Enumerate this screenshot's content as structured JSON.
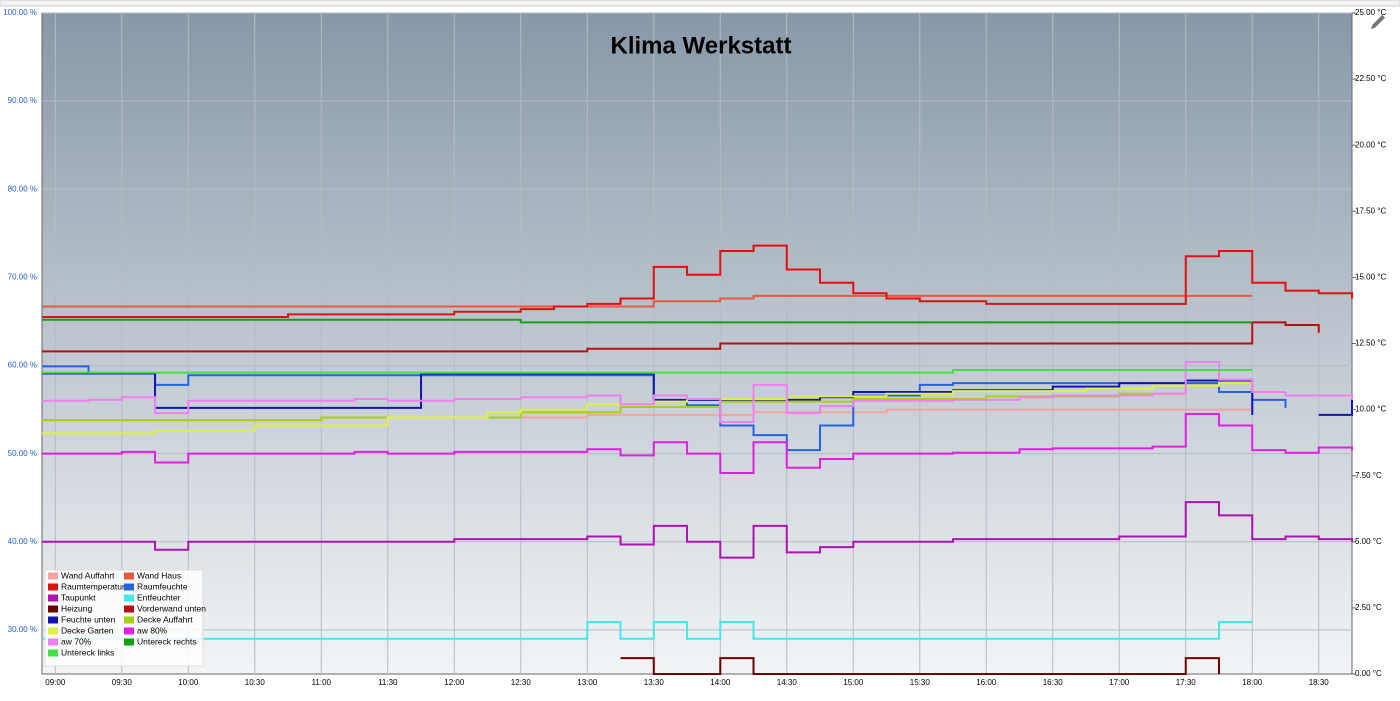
{
  "chart_data": {
    "type": "line",
    "title": "Klima Werkstatt",
    "step": true,
    "grid": true,
    "legend": "lower left",
    "xlim": [
      8.9,
      18.75
    ],
    "xticks": [
      {
        "value": 9,
        "label": "09:00"
      },
      {
        "value": 9.5,
        "label": "09:30"
      },
      {
        "value": 10,
        "label": "10:00"
      },
      {
        "value": 10.5,
        "label": "10:30"
      },
      {
        "value": 11,
        "label": "11:00"
      },
      {
        "value": 11.5,
        "label": "11:30"
      },
      {
        "value": 12,
        "label": "12:00"
      },
      {
        "value": 12.5,
        "label": "12:30"
      },
      {
        "value": 13,
        "label": "13:00"
      },
      {
        "value": 13.5,
        "label": "13:30"
      },
      {
        "value": 14,
        "label": "14:00"
      },
      {
        "value": 14.5,
        "label": "14:30"
      },
      {
        "value": 15,
        "label": "15:00"
      },
      {
        "value": 15.5,
        "label": "15:30"
      },
      {
        "value": 16,
        "label": "16:00"
      },
      {
        "value": 16.5,
        "label": "16:30"
      },
      {
        "value": 17,
        "label": "17:00"
      },
      {
        "value": 17.5,
        "label": "17:30"
      },
      {
        "value": 18,
        "label": "18:00"
      },
      {
        "value": 18.5,
        "label": "18:30"
      }
    ],
    "ylim": [
      25,
      100
    ],
    "yticks": [
      {
        "value": 30,
        "label": "30.00 %"
      },
      {
        "value": 40,
        "label": "40.00 %"
      },
      {
        "value": 50,
        "label": "50.00 %"
      },
      {
        "value": 60,
        "label": "60.00 %"
      },
      {
        "value": 70,
        "label": "70.00 %"
      },
      {
        "value": 80,
        "label": "80.00 %"
      },
      {
        "value": 90,
        "label": "90.00 %"
      },
      {
        "value": 100,
        "label": "100.00 %"
      }
    ],
    "y2lim": [
      0,
      25
    ],
    "y2ticks": [
      {
        "value": 0,
        "label": "0.00 °C"
      },
      {
        "value": 2.5,
        "label": "2.50 °C"
      },
      {
        "value": 5,
        "label": "5.00 °C"
      },
      {
        "value": 7.5,
        "label": "7.50 °C"
      },
      {
        "value": 10,
        "label": "10.00 °C"
      },
      {
        "value": 12.5,
        "label": "12.50 °C"
      },
      {
        "value": 15,
        "label": "15.00 °C"
      },
      {
        "value": 17.5,
        "label": "17.50 °C"
      },
      {
        "value": 20,
        "label": "20.00 °C"
      },
      {
        "value": 22.5,
        "label": "22.50 °C"
      },
      {
        "value": 25,
        "label": "25.00 °C"
      }
    ],
    "x": [
      8.9,
      9.25,
      9.5,
      9.75,
      10,
      10.25,
      10.5,
      10.75,
      11,
      11.25,
      11.5,
      11.75,
      12,
      12.25,
      12.5,
      12.75,
      13,
      13.25,
      13.5,
      13.75,
      14,
      14.25,
      14.5,
      14.75,
      15,
      15.25,
      15.5,
      15.75,
      16,
      16.25,
      16.5,
      16.75,
      17,
      17.25,
      17.5,
      17.75,
      18,
      18.25,
      18.5,
      18.75
    ],
    "series": [
      {
        "name": "Wand Auffahrt",
        "color": "#f4a4a0",
        "axis": "y2",
        "values": [
          9.6,
          9.6,
          9.6,
          9.6,
          9.6,
          9.6,
          9.6,
          9.6,
          9.7,
          9.7,
          9.7,
          9.7,
          9.7,
          9.7,
          9.7,
          9.7,
          9.8,
          9.8,
          9.8,
          9.8,
          9.8,
          9.9,
          9.9,
          9.9,
          9.9,
          10.0,
          10.0,
          10.0,
          10.0,
          10.0,
          10.0,
          10.0,
          10.0,
          10.0,
          10.0,
          10.0,
          10.0,
          null,
          null,
          null
        ]
      },
      {
        "name": "Wand Haus",
        "color": "#e8583c",
        "axis": "y2",
        "values": [
          13.9,
          13.9,
          13.9,
          13.9,
          13.9,
          13.9,
          13.9,
          13.9,
          13.9,
          13.9,
          13.9,
          13.9,
          13.9,
          13.9,
          13.9,
          13.9,
          13.9,
          13.9,
          14.1,
          14.1,
          14.2,
          14.3,
          14.3,
          14.3,
          14.3,
          14.3,
          14.3,
          14.3,
          14.3,
          14.3,
          14.3,
          14.3,
          14.3,
          14.3,
          14.3,
          14.3,
          14.3,
          null,
          null,
          null
        ]
      },
      {
        "name": "Raumtemperatur",
        "color": "#e01010",
        "axis": "y2",
        "values": [
          13.5,
          13.5,
          13.5,
          13.5,
          13.5,
          13.5,
          13.5,
          13.6,
          13.6,
          13.6,
          13.6,
          13.6,
          13.7,
          13.7,
          13.8,
          13.9,
          14.0,
          14.2,
          15.4,
          15.1,
          16.0,
          16.2,
          15.3,
          14.8,
          14.4,
          14.2,
          14.1,
          14.1,
          14.0,
          14.0,
          14.0,
          14.0,
          14.0,
          14.0,
          15.8,
          16.0,
          14.8,
          14.5,
          14.4,
          14.2
        ]
      },
      {
        "name": "Raumfeuchte",
        "color": "#2464e0",
        "axis": "y",
        "values": [
          59.9,
          59.1,
          59.1,
          57.8,
          58.9,
          58.9,
          58.9,
          58.9,
          58.9,
          58.9,
          58.9,
          58.9,
          58.9,
          58.9,
          58.9,
          58.9,
          58.9,
          58.9,
          56.6,
          55.5,
          53.2,
          52.1,
          50.4,
          53.2,
          56.6,
          56.6,
          57.8,
          58.0,
          58.0,
          58.0,
          58.0,
          58.0,
          58.0,
          58.0,
          58.0,
          57.0,
          56.1,
          55.2,
          null,
          null
        ]
      },
      {
        "name": "Taupunkt",
        "color": "#b012b0",
        "axis": "y2",
        "values": [
          5.0,
          5.0,
          5.0,
          4.7,
          5.0,
          5.0,
          5.0,
          5.0,
          5.0,
          5.0,
          5.0,
          5.0,
          5.1,
          5.1,
          5.1,
          5.1,
          5.2,
          4.9,
          5.6,
          5.0,
          4.4,
          5.6,
          4.6,
          4.8,
          5.0,
          5.0,
          5.0,
          5.1,
          5.1,
          5.1,
          5.1,
          5.1,
          5.2,
          5.2,
          6.5,
          6.0,
          5.1,
          5.2,
          5.1,
          5.0
        ]
      },
      {
        "name": "Entfeuchter",
        "color": "#44e8e8",
        "axis": "y",
        "values": [
          29.0,
          29.0,
          29.0,
          29.0,
          29.0,
          29.0,
          29.0,
          29.0,
          29.0,
          29.0,
          29.0,
          29.0,
          29.0,
          29.0,
          29.0,
          29.0,
          30.9,
          29.0,
          30.9,
          29.0,
          30.9,
          29.0,
          29.0,
          29.0,
          29.0,
          29.0,
          29.0,
          29.0,
          29.0,
          29.0,
          29.0,
          29.0,
          29.0,
          29.0,
          29.0,
          30.9,
          30.9,
          null,
          null,
          null
        ]
      },
      {
        "name": "Heizung",
        "color": "#700000",
        "axis": "y2",
        "values": [
          null,
          null,
          null,
          null,
          null,
          null,
          null,
          null,
          null,
          null,
          null,
          null,
          null,
          null,
          null,
          null,
          null,
          0.6,
          0,
          0,
          0.6,
          0,
          0,
          0,
          0,
          0,
          0,
          0,
          0,
          0,
          0,
          0,
          0,
          0,
          0.6,
          0,
          null,
          null,
          null,
          null
        ]
      },
      {
        "name": "Vorderwand unten",
        "color": "#b81010",
        "axis": "y2",
        "values": [
          12.2,
          12.2,
          12.2,
          12.2,
          12.2,
          12.2,
          12.2,
          12.2,
          12.2,
          12.2,
          12.2,
          12.2,
          12.2,
          12.2,
          12.2,
          12.2,
          12.3,
          12.3,
          12.3,
          12.3,
          12.5,
          12.5,
          12.5,
          12.5,
          12.5,
          12.5,
          12.5,
          12.5,
          12.5,
          12.5,
          12.5,
          12.5,
          12.5,
          12.5,
          12.5,
          12.5,
          13.3,
          13.2,
          12.9,
          null
        ]
      },
      {
        "name": "Feuchte unten",
        "color": "#1414b0",
        "axis": "y",
        "values": [
          59.1,
          59.1,
          59.1,
          55.2,
          55.2,
          55.2,
          55.2,
          55.2,
          55.2,
          55.2,
          55.2,
          59.1,
          59.1,
          59.1,
          59.1,
          59.1,
          59.1,
          59.1,
          56.1,
          56.1,
          56.1,
          56.1,
          56.1,
          56.4,
          57.0,
          57.0,
          57.0,
          57.2,
          57.2,
          57.2,
          57.6,
          57.6,
          58.0,
          58.0,
          58.3,
          58.3,
          54.4,
          null,
          54.4,
          56.1
        ]
      },
      {
        "name": "Decke Auffahrt",
        "color": "#a8d010",
        "axis": "y2",
        "values": [
          9.6,
          9.6,
          9.6,
          9.6,
          9.6,
          9.6,
          9.6,
          9.6,
          9.7,
          9.7,
          9.7,
          9.7,
          9.7,
          9.7,
          9.9,
          9.9,
          9.9,
          10.1,
          10.1,
          10.1,
          10.3,
          10.3,
          10.3,
          10.3,
          10.4,
          10.4,
          10.4,
          10.4,
          10.5,
          10.5,
          10.5,
          10.5,
          10.6,
          10.6,
          10.9,
          11.0,
          10.7,
          null,
          null,
          null
        ]
      },
      {
        "name": "Decke Garten",
        "color": "#e0f040",
        "axis": "y2",
        "values": [
          9.1,
          9.1,
          9.1,
          9.2,
          9.2,
          9.2,
          9.4,
          9.4,
          9.4,
          9.4,
          9.7,
          9.7,
          9.7,
          9.9,
          10.0,
          10.0,
          10.2,
          10.2,
          10.3,
          10.4,
          10.4,
          10.4,
          10.5,
          10.5,
          10.5,
          10.6,
          10.6,
          10.7,
          10.7,
          10.7,
          10.7,
          10.8,
          10.8,
          10.9,
          10.9,
          11.0,
          10.8,
          null,
          null,
          null
        ]
      },
      {
        "name": "aw 80%",
        "color": "#e020e0",
        "axis": "y",
        "values": [
          50.0,
          50.0,
          50.2,
          49.0,
          50.0,
          50.0,
          50.0,
          50.0,
          50.0,
          50.2,
          50.0,
          50.0,
          50.2,
          50.2,
          50.2,
          50.2,
          50.5,
          49.8,
          51.3,
          50.0,
          47.8,
          51.3,
          48.4,
          49.4,
          50.0,
          50.0,
          50.0,
          50.1,
          50.1,
          50.5,
          50.6,
          50.6,
          50.6,
          50.8,
          54.5,
          53.2,
          50.4,
          50.1,
          50.7,
          50.4
        ]
      },
      {
        "name": "aw 70%",
        "color": "#f080f0",
        "axis": "y",
        "values": [
          56.0,
          56.1,
          56.4,
          54.6,
          56.0,
          56.0,
          56.0,
          56.0,
          56.0,
          56.2,
          56.0,
          56.0,
          56.2,
          56.2,
          56.4,
          56.4,
          56.6,
          55.6,
          56.6,
          56.2,
          53.6,
          57.8,
          54.6,
          55.4,
          56.0,
          56.0,
          56.0,
          56.1,
          56.1,
          56.4,
          56.6,
          56.6,
          56.6,
          56.8,
          60.4,
          58.4,
          57.0,
          56.6,
          56.6,
          56.2
        ]
      },
      {
        "name": "Untereck rechts",
        "color": "#14a014",
        "axis": "y2",
        "values": [
          13.4,
          13.4,
          13.4,
          13.4,
          13.4,
          13.4,
          13.4,
          13.4,
          13.4,
          13.4,
          13.4,
          13.4,
          13.4,
          13.4,
          13.3,
          13.3,
          13.3,
          13.3,
          13.3,
          13.3,
          13.3,
          13.3,
          13.3,
          13.3,
          13.3,
          13.3,
          13.3,
          13.3,
          13.3,
          13.3,
          13.3,
          13.3,
          13.3,
          13.3,
          13.3,
          13.3,
          13.3,
          null,
          null,
          null
        ]
      },
      {
        "name": "Untereck links",
        "color": "#44e044",
        "axis": "y2",
        "values": [
          11.4,
          11.4,
          11.4,
          11.4,
          11.4,
          11.4,
          11.4,
          11.4,
          11.4,
          11.4,
          11.4,
          11.4,
          11.4,
          11.4,
          11.4,
          11.4,
          11.4,
          11.4,
          11.4,
          11.4,
          11.4,
          11.4,
          11.4,
          11.4,
          11.4,
          11.4,
          11.4,
          11.5,
          11.5,
          11.5,
          11.5,
          11.5,
          11.5,
          11.5,
          11.5,
          11.5,
          11.5,
          null,
          null,
          null
        ]
      }
    ]
  }
}
